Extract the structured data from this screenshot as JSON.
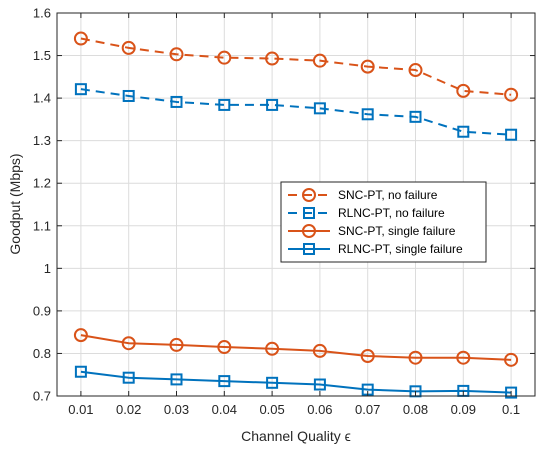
{
  "chart_data": {
    "type": "line",
    "title": "",
    "xlabel": "Channel Quality ϵ",
    "ylabel": "Goodput (Mbps)",
    "x": [
      0.01,
      0.02,
      0.03,
      0.04,
      0.05,
      0.06,
      0.07,
      0.08,
      0.09,
      0.1
    ],
    "x_tick_labels": [
      "0.01",
      "0.02",
      "0.03",
      "0.04",
      "0.05",
      "0.06",
      "0.07",
      "0.08",
      "0.09",
      "0.1"
    ],
    "xlim": [
      0.005,
      0.105
    ],
    "ylim": [
      0.7,
      1.6
    ],
    "y_ticks": [
      0.7,
      0.8,
      0.9,
      1.0,
      1.1,
      1.2,
      1.3,
      1.4,
      1.5,
      1.6
    ],
    "y_tick_labels": [
      "0.7",
      "0.8",
      "0.9",
      "1",
      "1.1",
      "1.2",
      "1.3",
      "1.4",
      "1.5",
      "1.6"
    ],
    "grid": true,
    "legend_position": "center-right",
    "series": [
      {
        "name": "SNC-PT, no failure",
        "color": "#D95319",
        "line": "dashed",
        "marker": "circle",
        "values": [
          1.54,
          1.518,
          1.503,
          1.495,
          1.493,
          1.488,
          1.474,
          1.466,
          1.417,
          1.408
        ]
      },
      {
        "name": "RLNC-PT, no failure",
        "color": "#0072BD",
        "line": "dashed",
        "marker": "square",
        "values": [
          1.421,
          1.405,
          1.391,
          1.384,
          1.384,
          1.376,
          1.362,
          1.356,
          1.321,
          1.314
        ]
      },
      {
        "name": "SNC-PT, single failure",
        "color": "#D95319",
        "line": "solid",
        "marker": "circle",
        "values": [
          0.843,
          0.824,
          0.82,
          0.815,
          0.811,
          0.806,
          0.794,
          0.79,
          0.79,
          0.785
        ]
      },
      {
        "name": "RLNC-PT, single failure",
        "color": "#0072BD",
        "line": "solid",
        "marker": "square",
        "values": [
          0.757,
          0.743,
          0.739,
          0.735,
          0.731,
          0.727,
          0.715,
          0.711,
          0.712,
          0.708
        ]
      }
    ]
  }
}
